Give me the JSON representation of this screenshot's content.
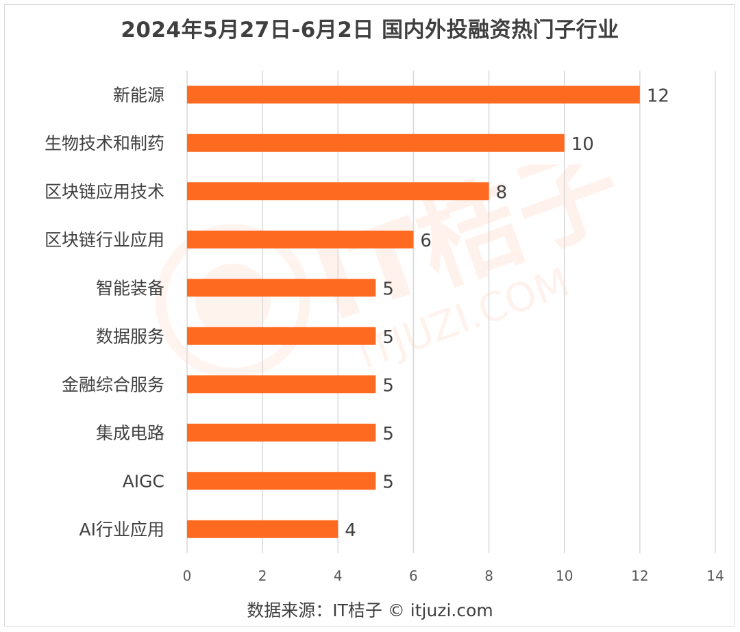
{
  "title": "2024年5月27日-6月2日 国内外投融资热门子行业",
  "source": "数据来源：IT桔子 © itjuzi.com",
  "watermark": {
    "brand": "IT桔子",
    "domain": "ITJUZI.COM"
  },
  "colors": {
    "bar": "#FF6A21",
    "grid": "#d9d9d9",
    "text": "#404040"
  },
  "chart_data": {
    "type": "bar",
    "orientation": "horizontal",
    "categories": [
      "新能源",
      "生物技术和制药",
      "区块链应用技术",
      "区块链行业应用",
      "智能装备",
      "数据服务",
      "金融综合服务",
      "集成电路",
      "AIGC",
      "AI行业应用"
    ],
    "values": [
      12,
      10,
      8,
      6,
      5,
      5,
      5,
      5,
      5,
      4
    ],
    "xlim": [
      0,
      14
    ],
    "xticks": [
      0,
      2,
      4,
      6,
      8,
      10,
      12,
      14
    ],
    "grid": true,
    "data_labels": true
  }
}
